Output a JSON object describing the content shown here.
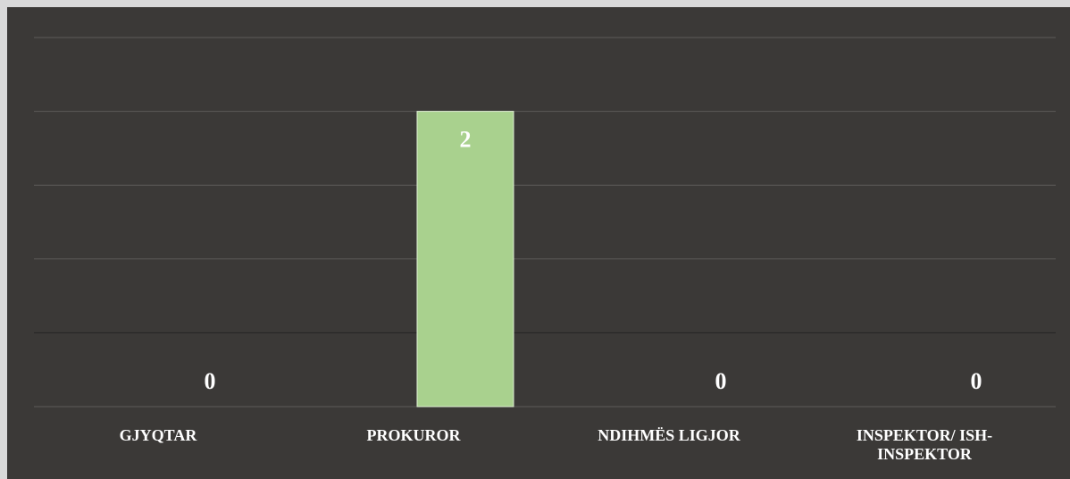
{
  "chart_data": {
    "type": "bar",
    "categories": [
      "GJYQTAR",
      "PROKUROR",
      "NDIHMËS LIGJOR",
      "INSPEKTOR/ ISH-INSPEKTOR"
    ],
    "values": [
      0,
      2,
      0,
      0
    ],
    "color": "#a9d18e",
    "ylim": [
      0,
      2.5
    ],
    "yticks": [
      0,
      0.5,
      1,
      1.5,
      2,
      2.5
    ],
    "grid": true
  }
}
